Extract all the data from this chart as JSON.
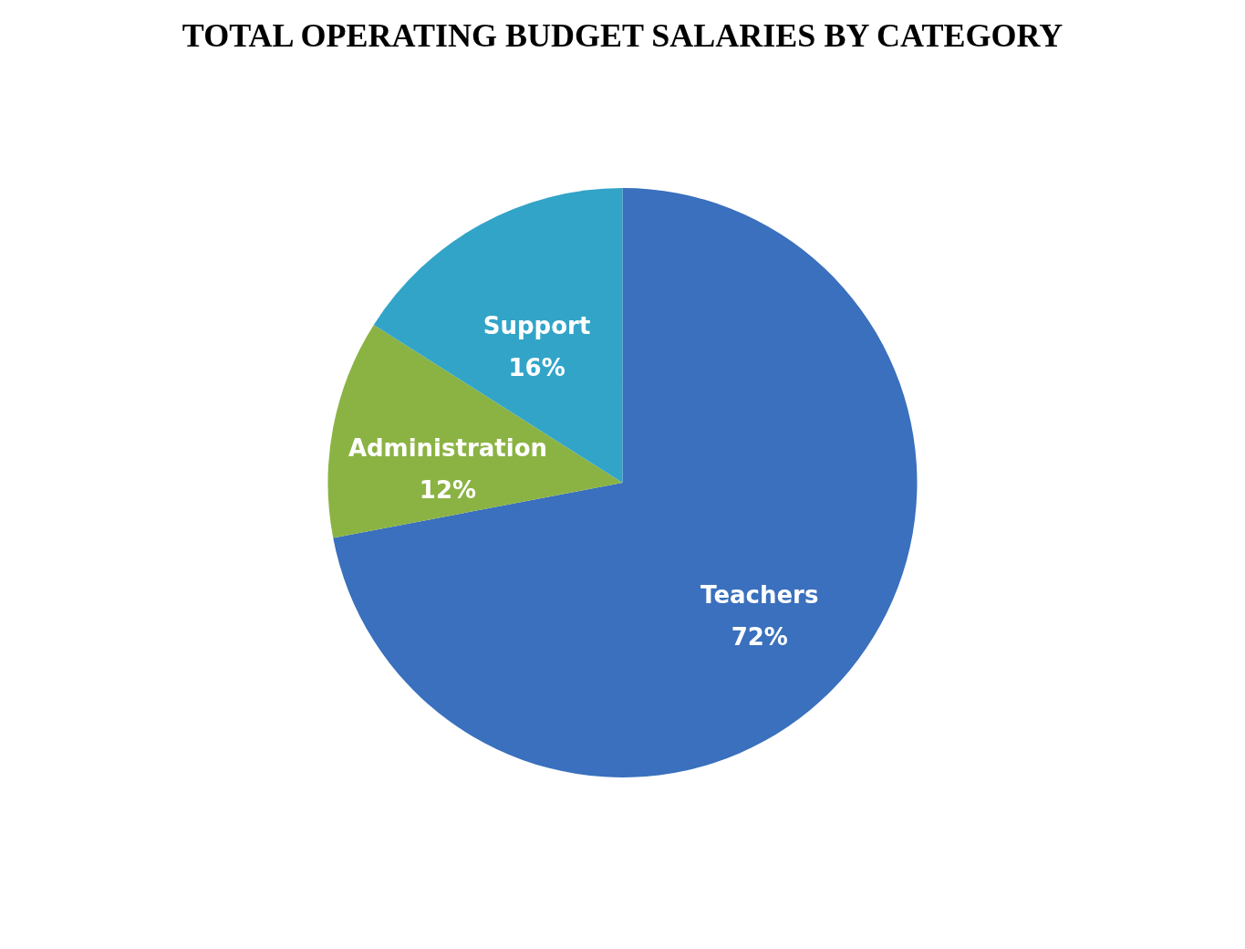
{
  "chart_data": {
    "type": "pie",
    "title": "TOTAL OPERATING  BUDGET SALARIES\nBY CATEGORY",
    "categories": [
      "Teachers",
      "Administration",
      "Support"
    ],
    "values": [
      72,
      12,
      16
    ],
    "value_labels": [
      "72%",
      "12%",
      "16%"
    ],
    "colors": [
      "#3a70bd",
      "#8bb343",
      "#32a4c8"
    ],
    "legend": false
  }
}
